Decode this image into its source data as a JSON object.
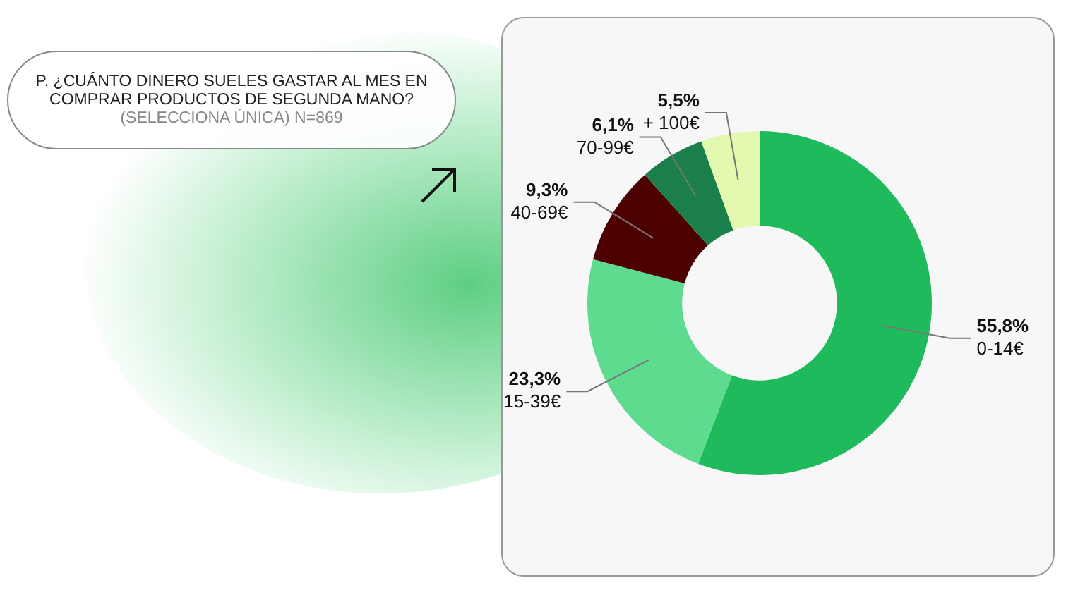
{
  "chart_data": {
    "type": "donut",
    "title": "P. ¿CUÁNTO DINERO SUELES GASTAR AL MES EN COMPRAR PRODUCTOS DE SEGUNDA MANO?",
    "subtitle": "(SELECCIONA ÚNICA) N=869",
    "categories": [
      "0-14€",
      "15-39€",
      "40-69€",
      "70-99€",
      "+ 100€"
    ],
    "values": [
      55.8,
      23.3,
      9.3,
      6.1,
      5.5
    ],
    "value_labels": [
      "55,8%",
      "23,3%",
      "9,3%",
      "6,1%",
      "5,5%"
    ],
    "colors": [
      "#1fba5c",
      "#5ddc8f",
      "#4d0000",
      "#1a7f4b",
      "#e3f9b0"
    ]
  }
}
